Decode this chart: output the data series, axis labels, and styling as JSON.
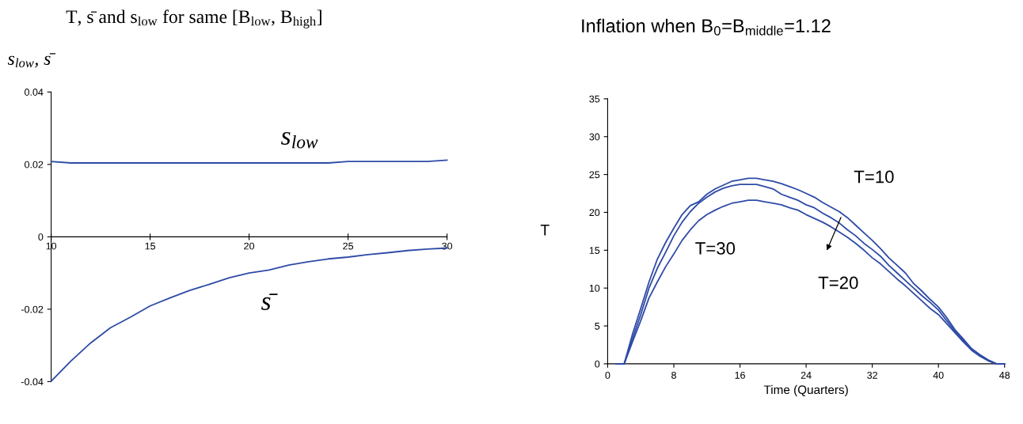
{
  "chart_data": [
    {
      "type": "line",
      "title": "T, s̄ and s$_{low}$ for same [B$_{low}$, B$_{high}$]",
      "ylabel": "s$_{low}$, s̄",
      "x": [
        10,
        11,
        12,
        13,
        14,
        15,
        16,
        17,
        18,
        19,
        20,
        21,
        22,
        23,
        24,
        25,
        26,
        27,
        28,
        29,
        30
      ],
      "series": [
        {
          "color": "#2e4ba6",
          "values": [
            0.0208,
            0.0204,
            0.0204,
            0.0204,
            0.0204,
            0.0204,
            0.0204,
            0.0204,
            0.0204,
            0.0204,
            0.0204,
            0.0204,
            0.0204,
            0.0204,
            0.0204,
            0.0208,
            0.0208,
            0.0208,
            0.0208,
            0.0208,
            0.0212
          ]
        },
        {
          "color": "#2e4ba6",
          "values": [
            -0.0399,
            -0.0343,
            -0.0293,
            -0.0251,
            -0.0222,
            -0.0191,
            -0.0169,
            -0.0148,
            -0.0131,
            -0.0113,
            -0.01,
            -0.0092,
            -0.0078,
            -0.0069,
            -0.0061,
            -0.0056,
            -0.0049,
            -0.0044,
            -0.0038,
            -0.0034,
            -0.0031
          ]
        }
      ],
      "annotations": [
        "s$_{low}$",
        "s̄"
      ],
      "xlim": [
        10,
        30
      ],
      "xticks": [
        10,
        15,
        20,
        25,
        30
      ],
      "ylim": [
        -0.04,
        0.04
      ],
      "yticks": [
        -0.04,
        -0.02,
        0,
        0.02,
        0.04
      ],
      "grid": false,
      "legend": false,
      "line_style": "solid",
      "marker": "none"
    },
    {
      "type": "line",
      "title": "Inflation when B$_{0}$=B$_{middle}$=1.12",
      "xlabel": "Time (Quarters)",
      "ylabel": "T",
      "x": [
        1,
        2,
        3,
        4,
        5,
        6,
        7,
        8,
        9,
        10,
        11,
        12,
        13,
        14,
        15,
        16,
        17,
        18,
        19,
        20,
        21,
        22,
        23,
        24,
        25,
        26,
        27,
        28,
        29,
        30,
        31,
        32,
        33,
        34,
        35,
        36,
        37,
        38,
        39,
        40,
        41,
        42,
        43,
        44,
        45,
        46,
        47,
        48
      ],
      "series": [
        {
          "color": "#2e4ba6",
          "values": [
            0,
            0,
            3.9,
            7.3,
            10.8,
            13.8,
            16,
            17.9,
            19.7,
            20.9,
            21.4,
            22.4,
            23.1,
            23.6,
            24.1,
            24.3,
            24.5,
            24.5,
            24.3,
            24.1,
            23.8,
            23.4,
            23,
            22.5,
            22,
            21.3,
            20.7,
            20.1,
            19.3,
            18.3,
            17.3,
            16.3,
            15.2,
            14,
            13,
            12,
            10.6,
            9.6,
            8.5,
            7.5,
            6.1,
            4.5,
            3.3,
            2,
            1.2,
            0.5,
            0,
            0
          ]
        },
        {
          "color": "#2e4ba6",
          "values": [
            0,
            0,
            3.3,
            6.5,
            10,
            12.6,
            14.7,
            16.9,
            18.7,
            20.1,
            21.2,
            22,
            22.7,
            23.2,
            23.5,
            23.7,
            23.7,
            23.7,
            23.4,
            23.1,
            22.4,
            22,
            21.6,
            21,
            20.6,
            19.9,
            19.3,
            18.6,
            17.7,
            16.9,
            15.9,
            15.1,
            14.2,
            13,
            12,
            11,
            10,
            9,
            8.1,
            7.1,
            5.7,
            4.3,
            3.1,
            2,
            1.2,
            0.5,
            0,
            0
          ]
        },
        {
          "color": "#2e4ba6",
          "values": [
            0,
            0,
            2.9,
            5.7,
            8.7,
            10.8,
            12.8,
            14.5,
            16.3,
            17.7,
            18.9,
            19.7,
            20.3,
            20.8,
            21.2,
            21.4,
            21.6,
            21.6,
            21.4,
            21.2,
            21,
            20.6,
            20.3,
            19.7,
            19.2,
            18.7,
            18.1,
            17.4,
            16.7,
            15.9,
            15,
            14,
            13.2,
            12.2,
            11.2,
            10.3,
            9.3,
            8.3,
            7.3,
            6.5,
            5.3,
            4.1,
            2.9,
            1.8,
            1,
            0.4,
            0,
            0
          ]
        }
      ],
      "annotations": [
        "T=10",
        "T=30",
        "T=20"
      ],
      "xlim": [
        0,
        48
      ],
      "xticks": [
        0,
        8,
        16,
        24,
        32,
        40,
        48
      ],
      "ylim": [
        0,
        35
      ],
      "yticks": [
        0,
        5,
        10,
        15,
        20,
        25,
        30,
        35
      ],
      "grid": false,
      "legend": false,
      "line_style": "solid",
      "marker": "none"
    }
  ]
}
